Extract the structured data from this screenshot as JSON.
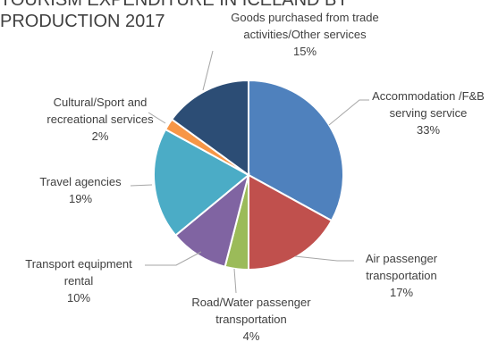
{
  "chart_data": {
    "type": "pie",
    "title_lines": [
      "TOURISM EXPENDITURE IN ICELAND BY",
      "PRODUCTION 2017"
    ],
    "start_angle_deg": 0,
    "direction": "clockwise",
    "legend": "none",
    "slices": [
      {
        "label": "Accommodation /F&B serving service",
        "value": 33,
        "value_label": "33%",
        "color": "#4f81bd"
      },
      {
        "label": "Air passenger transportation",
        "value": 17,
        "value_label": "17%",
        "color": "#c0504d"
      },
      {
        "label": "Road/Water passenger transportation",
        "value": 4,
        "value_label": "4%",
        "color": "#9bbb59"
      },
      {
        "label": "Transport equipment rental",
        "value": 10,
        "value_label": "10%",
        "color": "#8064a2"
      },
      {
        "label": "Travel agencies",
        "value": 19,
        "value_label": "19%",
        "color": "#4bacc6"
      },
      {
        "label": "Cultural/Sport and recreational services",
        "value": 2,
        "value_label": "2%",
        "color": "#f79646"
      },
      {
        "label": "Goods purchased from trade activities/Other services",
        "value": 15,
        "value_label": "15%",
        "color": "#2c4d75"
      }
    ]
  }
}
